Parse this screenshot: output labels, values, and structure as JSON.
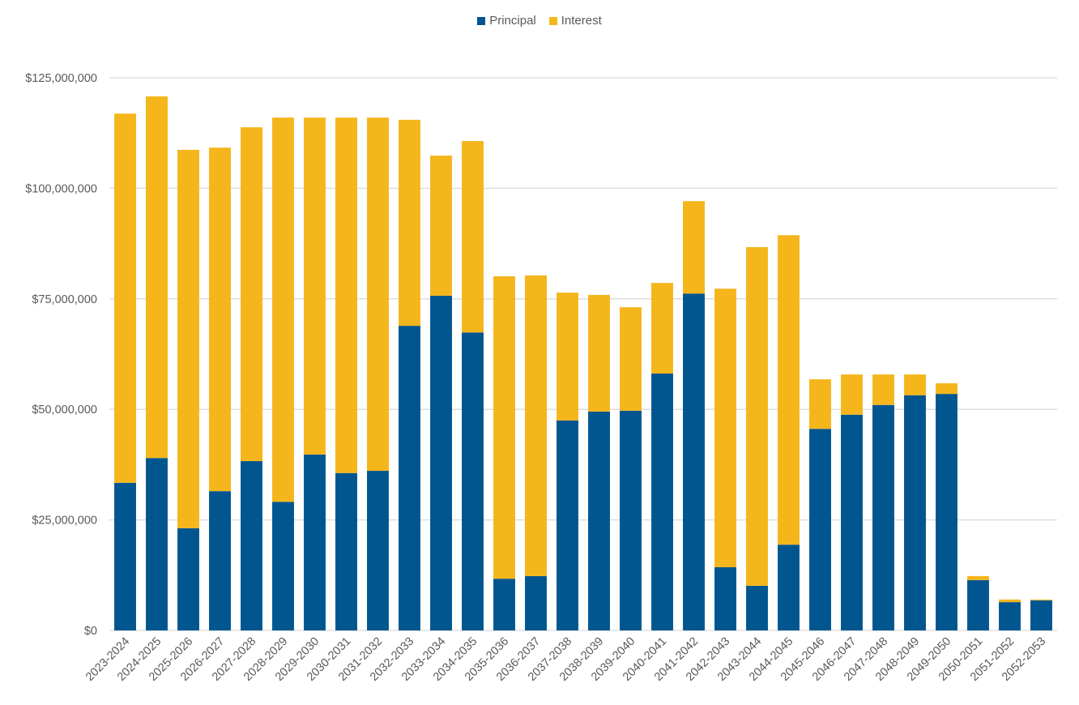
{
  "chart_data": {
    "type": "bar",
    "stacked": true,
    "title": "",
    "xlabel": "",
    "ylabel": "",
    "ylim": [
      0,
      125000000
    ],
    "yticks": [
      0,
      25000000,
      50000000,
      75000000,
      100000000,
      125000000
    ],
    "ytick_labels": [
      "$0",
      "$25,000,000",
      "$50,000,000",
      "$75,000,000",
      "$100,000,000",
      "$125,000,000"
    ],
    "grid": true,
    "legend_position": "top",
    "categories": [
      "2023-2024",
      "2024-2025",
      "2025-2026",
      "2026-2027",
      "2027-2028",
      "2028-2029",
      "2029-2030",
      "2030-2031",
      "2031-2032",
      "2032-2033",
      "2033-2034",
      "2034-2035",
      "2035-2036",
      "2036-2037",
      "2037-2038",
      "2038-2039",
      "2039-2040",
      "2040-2041",
      "2041-2042",
      "2042-2043",
      "2043-2044",
      "2044-2045",
      "2045-2046",
      "2046-2047",
      "2047-2048",
      "2048-2049",
      "2049-2050",
      "2050-2051",
      "2051-2052",
      "2052-2053"
    ],
    "series": [
      {
        "name": "Principal",
        "color": "#02568F",
        "values": [
          33400000,
          39000000,
          23100000,
          31500000,
          38300000,
          29100000,
          39800000,
          35600000,
          36100000,
          68900000,
          75700000,
          67400000,
          11700000,
          12300000,
          47500000,
          49500000,
          49700000,
          58100000,
          76200000,
          14300000,
          10100000,
          19400000,
          45600000,
          48800000,
          51000000,
          53200000,
          53500000,
          11400000,
          6400000,
          6800000
        ]
      },
      {
        "name": "Interest",
        "color": "#F5B61C",
        "values": [
          83500000,
          81800000,
          85600000,
          77700000,
          75500000,
          86900000,
          76200000,
          80400000,
          79900000,
          46600000,
          31700000,
          43300000,
          68400000,
          68000000,
          28900000,
          26400000,
          23400000,
          20500000,
          20900000,
          63000000,
          76600000,
          70000000,
          11200000,
          9100000,
          6900000,
          4700000,
          2400000,
          900000,
          600000,
          200000
        ]
      }
    ]
  },
  "colors": {
    "gridline": "#D9D9D9",
    "axis_text": "#595959"
  }
}
